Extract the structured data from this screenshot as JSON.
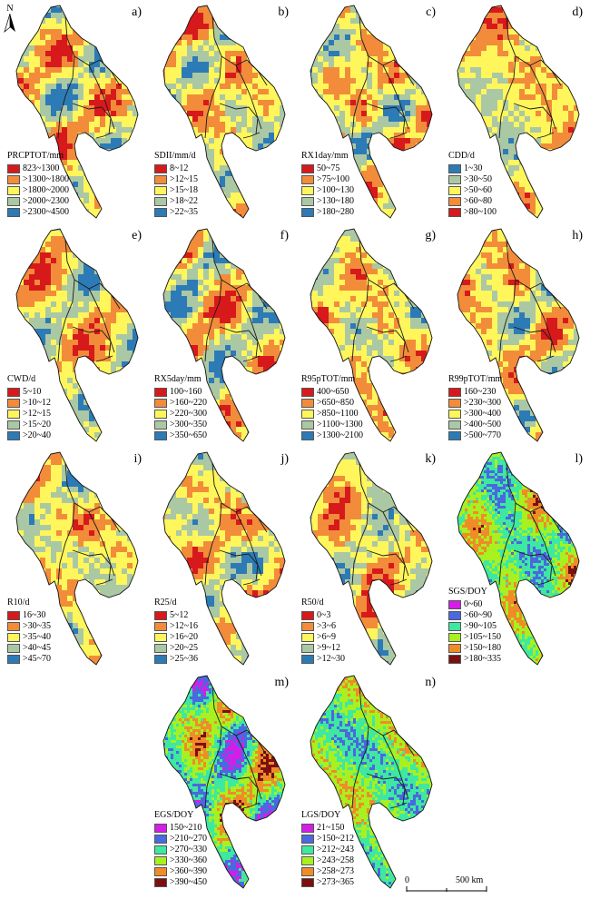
{
  "north_label": "N",
  "scale": {
    "zero": "0",
    "distance": "500 km"
  },
  "panels": [
    {
      "label": "a)",
      "title": "PRCPTOT/mm",
      "colors": [
        "#d7191c",
        "#f28c3a",
        "#fef65b",
        "#abc8a4",
        "#2c7bb6"
      ],
      "classes": [
        "823~1300",
        ">1300~1800",
        ">1800~2000",
        ">2000~2300",
        ">2300~4500"
      ]
    },
    {
      "label": "b)",
      "title": "SDII/mm/d",
      "colors": [
        "#d7191c",
        "#f28c3a",
        "#fef65b",
        "#abc8a4",
        "#2c7bb6"
      ],
      "classes": [
        "8~12",
        ">12~15",
        ">15~18",
        ">18~22",
        ">22~35"
      ]
    },
    {
      "label": "c)",
      "title": "RX1day/mm",
      "colors": [
        "#d7191c",
        "#f28c3a",
        "#fef65b",
        "#abc8a4",
        "#2c7bb6"
      ],
      "classes": [
        "50~75",
        ">75~100",
        ">100~130",
        ">130~180",
        ">180~280"
      ]
    },
    {
      "label": "d)",
      "title": "CDD/d",
      "colors": [
        "#2c7bb6",
        "#abc8a4",
        "#fef65b",
        "#f28c3a",
        "#d7191c"
      ],
      "classes": [
        "1~30",
        ">30~50",
        ">50~60",
        ">60~80",
        ">80~100"
      ]
    },
    {
      "label": "e)",
      "title": "CWD/d",
      "colors": [
        "#d7191c",
        "#f28c3a",
        "#fef65b",
        "#abc8a4",
        "#2c7bb6"
      ],
      "classes": [
        "5~10",
        ">10~12",
        ">12~15",
        ">15~20",
        ">20~40"
      ]
    },
    {
      "label": "f)",
      "title": "RX5day/mm",
      "colors": [
        "#d7191c",
        "#f28c3a",
        "#fef65b",
        "#abc8a4",
        "#2c7bb6"
      ],
      "classes": [
        "100~160",
        ">160~220",
        ">220~300",
        ">300~350",
        ">350~650"
      ]
    },
    {
      "label": "g)",
      "title": "R95pTOT/mm",
      "colors": [
        "#d7191c",
        "#f28c3a",
        "#fef65b",
        "#abc8a4",
        "#2c7bb6"
      ],
      "classes": [
        "400~650",
        ">650~850",
        ">850~1100",
        ">1100~1300",
        ">1300~2100"
      ]
    },
    {
      "label": "h)",
      "title": "R99pTOT/mm",
      "colors": [
        "#d7191c",
        "#f28c3a",
        "#fef65b",
        "#abc8a4",
        "#2c7bb6"
      ],
      "classes": [
        "160~230",
        ">230~300",
        ">300~400",
        ">400~500",
        ">500~770"
      ]
    },
    {
      "label": "i)",
      "title": "R10/d",
      "colors": [
        "#d7191c",
        "#f28c3a",
        "#fef65b",
        "#abc8a4",
        "#2c7bb6"
      ],
      "classes": [
        "16~30",
        ">30~35",
        ">35~40",
        ">40~45",
        ">45~70"
      ]
    },
    {
      "label": "j)",
      "title": "R25/d",
      "colors": [
        "#d7191c",
        "#f28c3a",
        "#fef65b",
        "#abc8a4",
        "#2c7bb6"
      ],
      "classes": [
        "5~12",
        ">12~16",
        ">16~20",
        ">20~25",
        ">25~36"
      ]
    },
    {
      "label": "k)",
      "title": "R50/d",
      "colors": [
        "#d7191c",
        "#f28c3a",
        "#fef65b",
        "#abc8a4",
        "#2c7bb6"
      ],
      "classes": [
        "0~3",
        ">3~6",
        ">6~9",
        ">9~12",
        ">12~30"
      ]
    },
    {
      "label": "l)",
      "title": "SGS/DOY",
      "colors": [
        "#d41ee8",
        "#4a68e0",
        "#3ee8a0",
        "#a8f020",
        "#f08c28",
        "#7a1010"
      ],
      "classes": [
        "0~60",
        ">60~90",
        ">90~105",
        ">105~150",
        ">150~180",
        ">180~335"
      ]
    },
    {
      "label": "m)",
      "title": "EGS/DOY",
      "colors": [
        "#d41ee8",
        "#4a68e0",
        "#3ee8a0",
        "#a8f020",
        "#f08c28",
        "#7a1010"
      ],
      "classes": [
        "150~210",
        ">210~270",
        ">270~330",
        ">330~360",
        ">360~390",
        ">390~450"
      ]
    },
    {
      "label": "n)",
      "title": "LGS/DOY",
      "colors": [
        "#d41ee8",
        "#4a68e0",
        "#3ee8a0",
        "#a8f020",
        "#f08c28",
        "#7a1010"
      ],
      "classes": [
        "21~150",
        ">150~212",
        ">212~243",
        ">243~258",
        ">258~273",
        ">273~365"
      ]
    }
  ]
}
